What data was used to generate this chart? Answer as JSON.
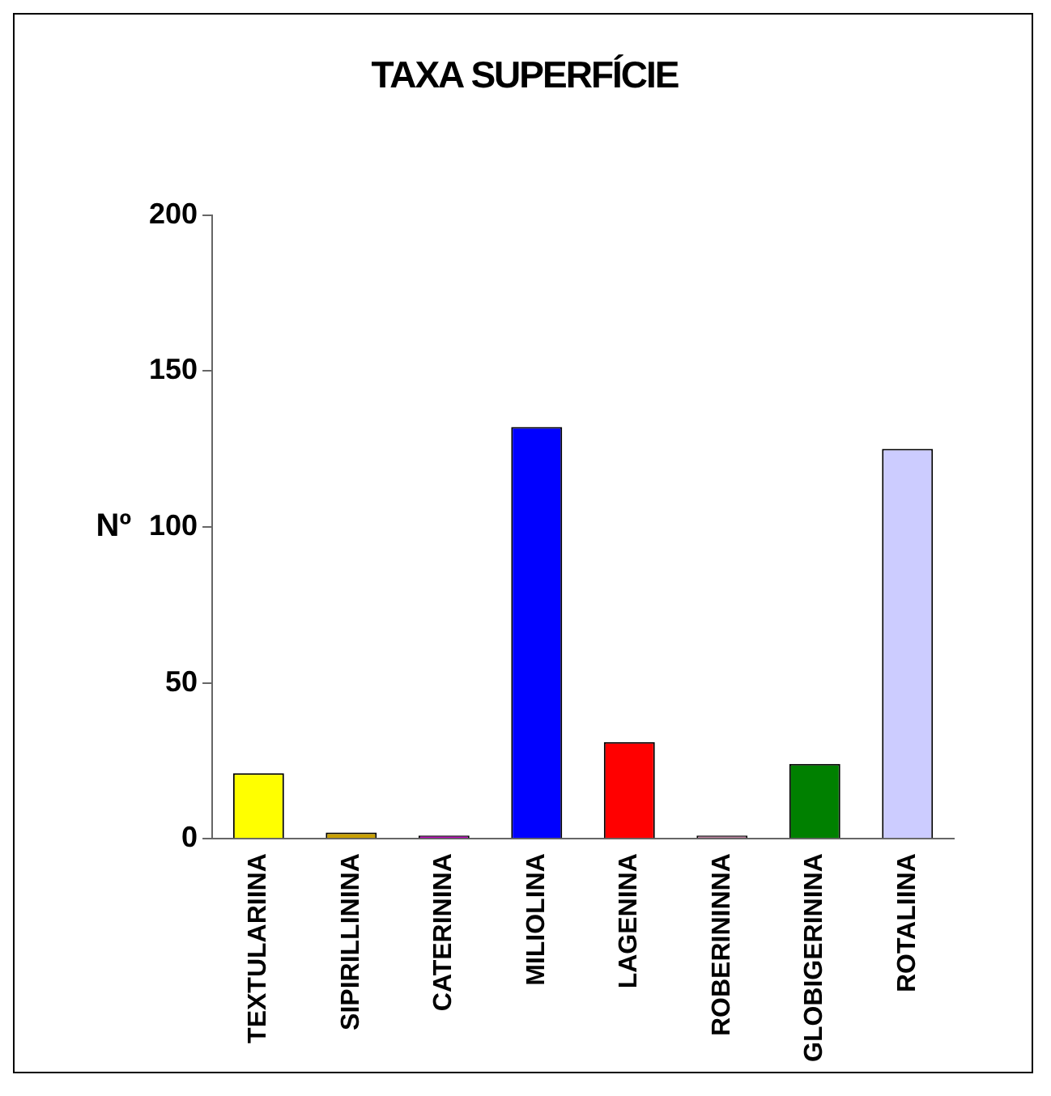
{
  "chart_data": {
    "type": "bar",
    "title": "TAXA SUPERFÍCIE",
    "ylabel": "Nº",
    "categories": [
      "TEXTULARIINA",
      "SIPIRILLININA",
      "CATERININA",
      "MILIOLINA",
      "LAGENINA",
      "ROBERININNA",
      "GLOBIGERININA",
      "ROTALIINA"
    ],
    "values": [
      21,
      2,
      1,
      132,
      31,
      1,
      24,
      125
    ],
    "colors": [
      "#ffff00",
      "#c8a000",
      "#c000c0",
      "#0000ff",
      "#ff0000",
      "#c080a0",
      "#008000",
      "#ccccff"
    ],
    "ylim": [
      0,
      200
    ],
    "yticks": [
      0,
      50,
      100,
      150,
      200
    ],
    "grid": false,
    "legend": false
  }
}
